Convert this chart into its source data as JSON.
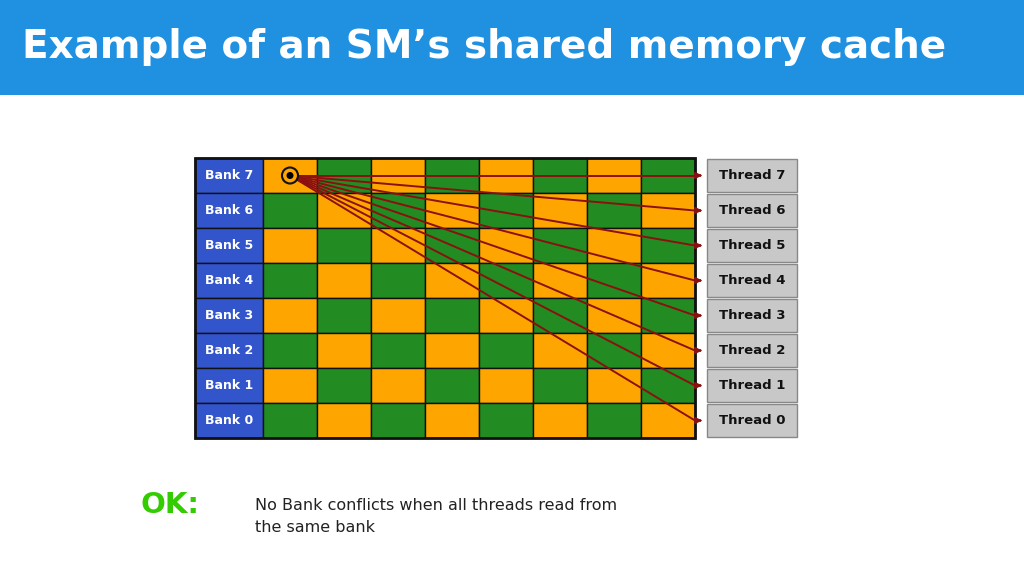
{
  "title": "Example of an SM’s shared memory cache",
  "title_bg": "#2090E0",
  "title_color": "#FFFFFF",
  "bg_color": "#FFFFFF",
  "banks": [
    "Bank 7",
    "Bank 6",
    "Bank 5",
    "Bank 4",
    "Bank 3",
    "Bank 2",
    "Bank 1",
    "Bank 0"
  ],
  "threads": [
    "Thread 7",
    "Thread 6",
    "Thread 5",
    "Thread 4",
    "Thread 3",
    "Thread 2",
    "Thread 1",
    "Thread 0"
  ],
  "num_cols": 8,
  "bank_label_bg": "#3355CC",
  "bank_label_color": "#FFFFFF",
  "thread_box_bg": "#C8C8C8",
  "thread_box_edge": "#888888",
  "thread_box_color": "#111111",
  "grid_color": "#111111",
  "arrow_color": "#8B1010",
  "ok_color": "#33CC00",
  "ok_text": "OK:",
  "note_text": "No Bank conflicts when all threads read from\nthe same bank",
  "note_color": "#222222",
  "orange": "#FFA500",
  "green": "#228B22"
}
